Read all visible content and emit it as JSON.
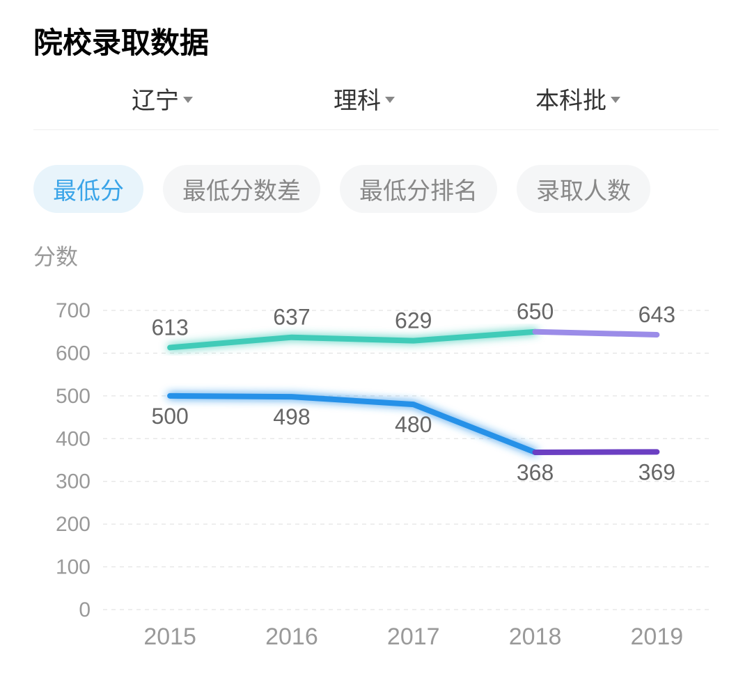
{
  "header": {
    "title": "院校录取数据",
    "dropdowns": [
      {
        "label": "辽宁"
      },
      {
        "label": "理科"
      },
      {
        "label": "本科批"
      }
    ]
  },
  "tabs": [
    {
      "label": "最低分",
      "active": true
    },
    {
      "label": "最低分数差",
      "active": false
    },
    {
      "label": "最低分排名",
      "active": false
    },
    {
      "label": "录取人数",
      "active": false
    }
  ],
  "chart": {
    "type": "line",
    "y_axis_label": "分数",
    "y_axis": {
      "min": 0,
      "max": 700,
      "ticks": [
        0,
        100,
        200,
        300,
        400,
        500,
        600,
        700
      ]
    },
    "x_axis": {
      "categories": [
        "2015",
        "2016",
        "2017",
        "2018",
        "2019"
      ]
    },
    "series": [
      {
        "name": "upper_teal",
        "color": "#3fcbb8",
        "values": [
          613,
          637,
          629,
          650,
          null
        ],
        "label_position": "above",
        "glow": true
      },
      {
        "name": "upper_purple",
        "color": "#9b8ce8",
        "values": [
          null,
          null,
          null,
          650,
          643
        ],
        "label_position": "above",
        "glow": false
      },
      {
        "name": "lower_blue",
        "color": "#2791e8",
        "values": [
          500,
          498,
          480,
          368,
          null
        ],
        "label_position": "below",
        "glow": true
      },
      {
        "name": "lower_darkpurple",
        "color": "#6b3fc2",
        "values": [
          null,
          null,
          null,
          368,
          369
        ],
        "label_position": "below",
        "glow": false
      }
    ],
    "line_width": 8,
    "background_color": "#ffffff",
    "grid_color": "#dddddd",
    "tick_color": "#999999",
    "label_color": "#666666",
    "label_fontsize": 32,
    "tick_fontsize_y": 30,
    "tick_fontsize_x": 34
  }
}
